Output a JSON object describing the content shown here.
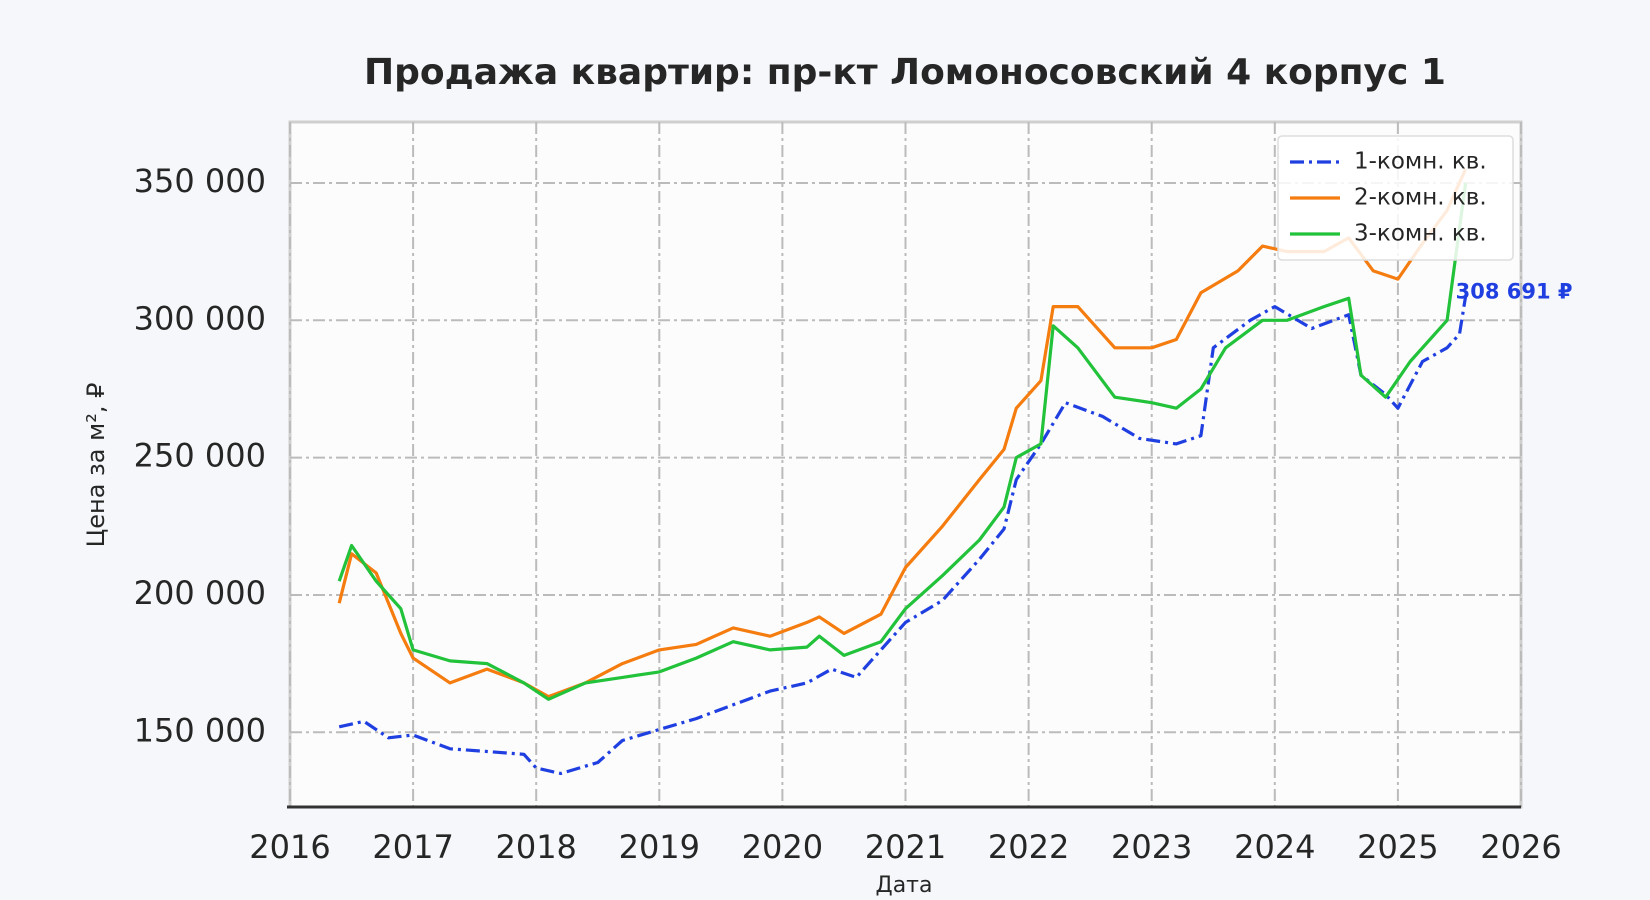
{
  "chart_data": {
    "type": "line",
    "title": "Продажа квартир: пр-кт Ломоносовский 4 корпус 1",
    "xlabel": "Дата",
    "ylabel": "Цена за м², ₽",
    "xlim": [
      2016,
      2026
    ],
    "xticks": [
      2016,
      2017,
      2018,
      2019,
      2020,
      2021,
      2022,
      2023,
      2024,
      2025,
      2026
    ],
    "ylim": [
      122800,
      372200
    ],
    "yticks": [
      {
        "value": 150000,
        "label": "150 000"
      },
      {
        "value": 200000,
        "label": "200 000"
      },
      {
        "value": 250000,
        "label": "250 000"
      },
      {
        "value": 300000,
        "label": "300 000"
      },
      {
        "value": 350000,
        "label": "350 000"
      }
    ],
    "grid": true,
    "legend": "upper right",
    "series": [
      {
        "name": "1-комн. кв.",
        "color": "#1f3fe0",
        "dash": true,
        "x": [
          2016.4,
          2016.6,
          2016.8,
          2017.0,
          2017.3,
          2017.6,
          2017.9,
          2018.0,
          2018.2,
          2018.5,
          2018.7,
          2019.0,
          2019.3,
          2019.6,
          2019.9,
          2020.2,
          2020.4,
          2020.6,
          2020.8,
          2021.0,
          2021.3,
          2021.6,
          2021.8,
          2021.9,
          2022.1,
          2022.3,
          2022.6,
          2022.9,
          2023.2,
          2023.4,
          2023.5,
          2023.8,
          2024.0,
          2024.3,
          2024.6,
          2024.7,
          2024.9,
          2025.0,
          2025.2,
          2025.4,
          2025.5,
          2025.55
        ],
        "values": [
          152000,
          154000,
          148000,
          149000,
          144000,
          143000,
          142000,
          137000,
          135000,
          139000,
          147000,
          151000,
          155000,
          160000,
          165000,
          168000,
          173000,
          170000,
          180000,
          190000,
          198000,
          213000,
          224000,
          242000,
          255000,
          270000,
          265000,
          257000,
          255000,
          258000,
          290000,
          300000,
          305000,
          297000,
          302000,
          280000,
          273000,
          268000,
          285000,
          290000,
          295000,
          308691
        ]
      },
      {
        "name": "2-комн. кв.",
        "color": "#f57c0f",
        "dash": false,
        "x": [
          2016.4,
          2016.5,
          2016.7,
          2016.9,
          2017.0,
          2017.3,
          2017.6,
          2017.9,
          2018.1,
          2018.4,
          2018.7,
          2019.0,
          2019.3,
          2019.6,
          2019.9,
          2020.2,
          2020.3,
          2020.5,
          2020.8,
          2021.0,
          2021.3,
          2021.6,
          2021.8,
          2021.9,
          2022.1,
          2022.2,
          2022.4,
          2022.7,
          2023.0,
          2023.2,
          2023.4,
          2023.7,
          2023.9,
          2024.1,
          2024.4,
          2024.6,
          2024.8,
          2025.0,
          2025.2,
          2025.4,
          2025.55
        ],
        "values": [
          197000,
          215000,
          208000,
          186000,
          177000,
          168000,
          173000,
          168000,
          163000,
          168000,
          175000,
          180000,
          182000,
          188000,
          185000,
          190000,
          192000,
          186000,
          193000,
          210000,
          225000,
          242000,
          253000,
          268000,
          278000,
          305000,
          305000,
          290000,
          290000,
          293000,
          310000,
          318000,
          327000,
          325000,
          325000,
          330000,
          318000,
          315000,
          328000,
          340000,
          355000
        ]
      },
      {
        "name": "3-комн. кв.",
        "color": "#22c23a",
        "dash": false,
        "x": [
          2016.4,
          2016.5,
          2016.7,
          2016.9,
          2017.0,
          2017.3,
          2017.6,
          2017.9,
          2018.1,
          2018.4,
          2018.7,
          2019.0,
          2019.3,
          2019.6,
          2019.9,
          2020.2,
          2020.3,
          2020.5,
          2020.8,
          2021.0,
          2021.3,
          2021.6,
          2021.8,
          2021.9,
          2022.1,
          2022.2,
          2022.4,
          2022.7,
          2023.0,
          2023.2,
          2023.4,
          2023.6,
          2023.9,
          2024.1,
          2024.4,
          2024.6,
          2024.7,
          2024.9,
          2025.1,
          2025.4,
          2025.55
        ],
        "values": [
          205000,
          218000,
          205000,
          195000,
          180000,
          176000,
          175000,
          168000,
          162000,
          168000,
          170000,
          172000,
          177000,
          183000,
          180000,
          181000,
          185000,
          178000,
          183000,
          195000,
          207000,
          220000,
          232000,
          250000,
          255000,
          298000,
          290000,
          272000,
          270000,
          268000,
          275000,
          290000,
          300000,
          300000,
          305000,
          308000,
          280000,
          272000,
          285000,
          300000,
          350000
        ]
      }
    ],
    "annotations": [
      {
        "text": "308 691 ₽",
        "x": 2025.55,
        "y": 308691,
        "color": "#1f3fe0"
      }
    ]
  }
}
